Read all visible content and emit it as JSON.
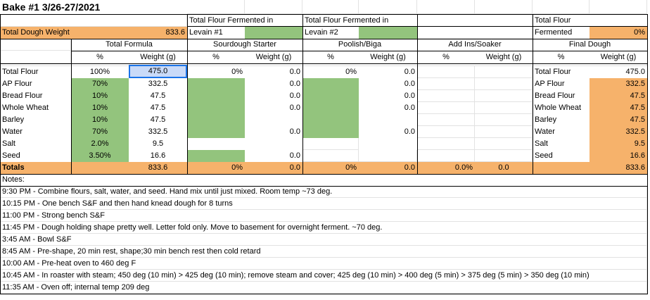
{
  "title": "Bake #1 3/26-27/2021",
  "header": {
    "tf_levain1": "Total Flour Fermented in",
    "levain1": "Levain #1",
    "tf_levain2": "Total Flour Fermented in",
    "levain2": "Levain #2",
    "tf_fermented": "Total Flour",
    "fermented": "Fermented",
    "fermented_pct": "0%",
    "dough_weight_label": "Total Dough Weight",
    "dough_weight_value": "833.6"
  },
  "sections": {
    "total_formula": "Total Formula",
    "sourdough": "Sourdough Starter",
    "poolish": "Poolish/Biga",
    "addins": "Add Ins/Soaker",
    "final": "Final Dough"
  },
  "subheaders": {
    "pct": "%",
    "weight": "Weight (g)"
  },
  "rows": [
    {
      "label": "Total Flour",
      "tf_pct": "100%",
      "tf_w": "475.0",
      "sd_pct": "0%",
      "sd_w": "0.0",
      "pb_pct": "0%",
      "pb_w": "0.0",
      "fd_label": "Total Flour",
      "fd_w": "475.0"
    },
    {
      "label": "AP Flour",
      "tf_pct": "70%",
      "tf_w": "332.5",
      "sd_w": "0.0",
      "pb_w": "0.0",
      "fd_label": "AP Flour",
      "fd_w": "332.5"
    },
    {
      "label": "Bread Flour",
      "tf_pct": "10%",
      "tf_w": "47.5",
      "sd_w": "0.0",
      "pb_w": "0.0",
      "fd_label": "Bread Flour",
      "fd_w": "47.5"
    },
    {
      "label": "Whole Wheat",
      "tf_pct": "10%",
      "tf_w": "47.5",
      "sd_w": "0.0",
      "pb_w": "0.0",
      "fd_label": "Whole Wheat",
      "fd_w": "47.5"
    },
    {
      "label": "Barley",
      "tf_pct": "10%",
      "tf_w": "47.5",
      "sd_w": "",
      "pb_w": "",
      "fd_label": "Barley",
      "fd_w": "47.5"
    },
    {
      "label": "Water",
      "tf_pct": "70%",
      "tf_w": "332.5",
      "sd_w": "0.0",
      "pb_w": "0.0",
      "fd_label": "Water",
      "fd_w": "332.5"
    },
    {
      "label": "Salt",
      "tf_pct": "2.0%",
      "tf_w": "9.5",
      "sd_w": "",
      "pb_w": "",
      "fd_label": "Salt",
      "fd_w": "9.5"
    },
    {
      "label": "Seed",
      "tf_pct": "3.50%",
      "tf_w": "16.6",
      "sd_w": "0.0",
      "pb_w": "",
      "fd_label": "Seed",
      "fd_w": "16.6"
    }
  ],
  "totals": {
    "label": "Totals",
    "tf_w": "833.6",
    "sd_pct": "0%",
    "sd_w": "0.0",
    "pb_pct": "0%",
    "pb_w": "0.0",
    "ai_pct": "0.0%",
    "ai_w": "0.0",
    "fd_w": "833.6"
  },
  "notes_label": "Notes:",
  "notes": [
    "9:30 PM - Combine flours, salt, water, and seed.  Hand mix until just mixed. Room temp ~73 deg.",
    "10:15 PM - One bench S&F and then hand knead dough for 8 turns",
    "11:00 PM - Strong bench S&F",
    "11:45 PM - Dough holding shape pretty well. Letter fold only. Move to basement for overnight ferment. ~70 deg.",
    "3:45 AM - Bowl S&F",
    "8:45 AM - Pre-shape, 20 min rest, shape;30 min bench rest then cold retard",
    "10:00 AM - Pre-heat oven to 460 deg F",
    "10:45 AM - In roaster with steam; 450 deg (10 min) > 425 deg (10 min); remove steam and cover; 425 deg (10 min) > 400 deg (5 min) > 375 deg (5 min) > 350 deg (10 min)",
    "11:35 AM - Oven off; internal temp 209 deg"
  ],
  "colors": {
    "orange": "#f6b26b",
    "green": "#93c47d",
    "selection": "#1a73e8"
  }
}
